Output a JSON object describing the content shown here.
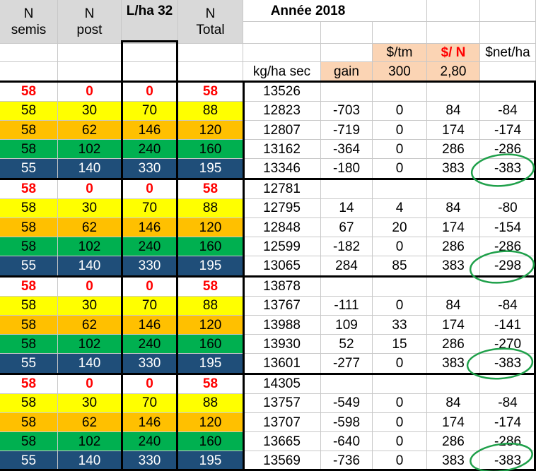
{
  "header": {
    "col1_line1": "N",
    "col1_line2": "semis",
    "col2_line1": "N",
    "col2_line2": "post",
    "col3": "L/ha 32",
    "col4_line1": "N",
    "col4_line2": "Total",
    "year": "Année 2018",
    "price_label": "$/tm",
    "n_price_label": "$/ N",
    "net_label": "$net/ha",
    "yield_unit": "kg/ha sec",
    "gain_label": "gain",
    "price_value": "300",
    "n_price_value": "2,80"
  },
  "colors": {
    "header_gray": "#d9d9d9",
    "peach": "#fbd4b4",
    "control": "#ffffff",
    "yellow": "#ffff00",
    "orange": "#ffc000",
    "green": "#00b050",
    "navy": "#1f4e79",
    "red_text": "#ff0000",
    "circle": "#1fa04a"
  },
  "blocks": [
    {
      "rows": [
        [
          "58",
          "0",
          "0",
          "58",
          "13526",
          "",
          "",
          "",
          ""
        ],
        [
          "58",
          "30",
          "70",
          "88",
          "12823",
          "-703",
          "0",
          "84",
          "-84"
        ],
        [
          "58",
          "62",
          "146",
          "120",
          "12807",
          "-719",
          "0",
          "174",
          "-174"
        ],
        [
          "58",
          "102",
          "240",
          "160",
          "13162",
          "-364",
          "0",
          "286",
          "-286"
        ],
        [
          "55",
          "140",
          "330",
          "195",
          "13346",
          "-180",
          "0",
          "383",
          "-383"
        ]
      ]
    },
    {
      "rows": [
        [
          "58",
          "0",
          "0",
          "58",
          "12781",
          "",
          "",
          "",
          ""
        ],
        [
          "58",
          "30",
          "70",
          "88",
          "12795",
          "14",
          "4",
          "84",
          "-80"
        ],
        [
          "58",
          "62",
          "146",
          "120",
          "12848",
          "67",
          "20",
          "174",
          "-154"
        ],
        [
          "58",
          "102",
          "240",
          "160",
          "12599",
          "-182",
          "0",
          "286",
          "-286"
        ],
        [
          "55",
          "140",
          "330",
          "195",
          "13065",
          "284",
          "85",
          "383",
          "-298"
        ]
      ]
    },
    {
      "rows": [
        [
          "58",
          "0",
          "0",
          "58",
          "13878",
          "",
          "",
          "",
          ""
        ],
        [
          "58",
          "30",
          "70",
          "88",
          "13767",
          "-111",
          "0",
          "84",
          "-84"
        ],
        [
          "58",
          "62",
          "146",
          "120",
          "13988",
          "109",
          "33",
          "174",
          "-141"
        ],
        [
          "58",
          "102",
          "240",
          "160",
          "13930",
          "52",
          "15",
          "286",
          "-270"
        ],
        [
          "55",
          "140",
          "330",
          "195",
          "13601",
          "-277",
          "0",
          "383",
          "-383"
        ]
      ]
    },
    {
      "rows": [
        [
          "58",
          "0",
          "0",
          "58",
          "14305",
          "",
          "",
          "",
          ""
        ],
        [
          "58",
          "30",
          "70",
          "88",
          "13757",
          "-549",
          "0",
          "84",
          "-84"
        ],
        [
          "58",
          "62",
          "146",
          "120",
          "13707",
          "-598",
          "0",
          "174",
          "-174"
        ],
        [
          "58",
          "102",
          "240",
          "160",
          "13665",
          "-640",
          "0",
          "286",
          "-286"
        ],
        [
          "55",
          "140",
          "330",
          "195",
          "13569",
          "-736",
          "0",
          "383",
          "-383"
        ]
      ]
    }
  ]
}
